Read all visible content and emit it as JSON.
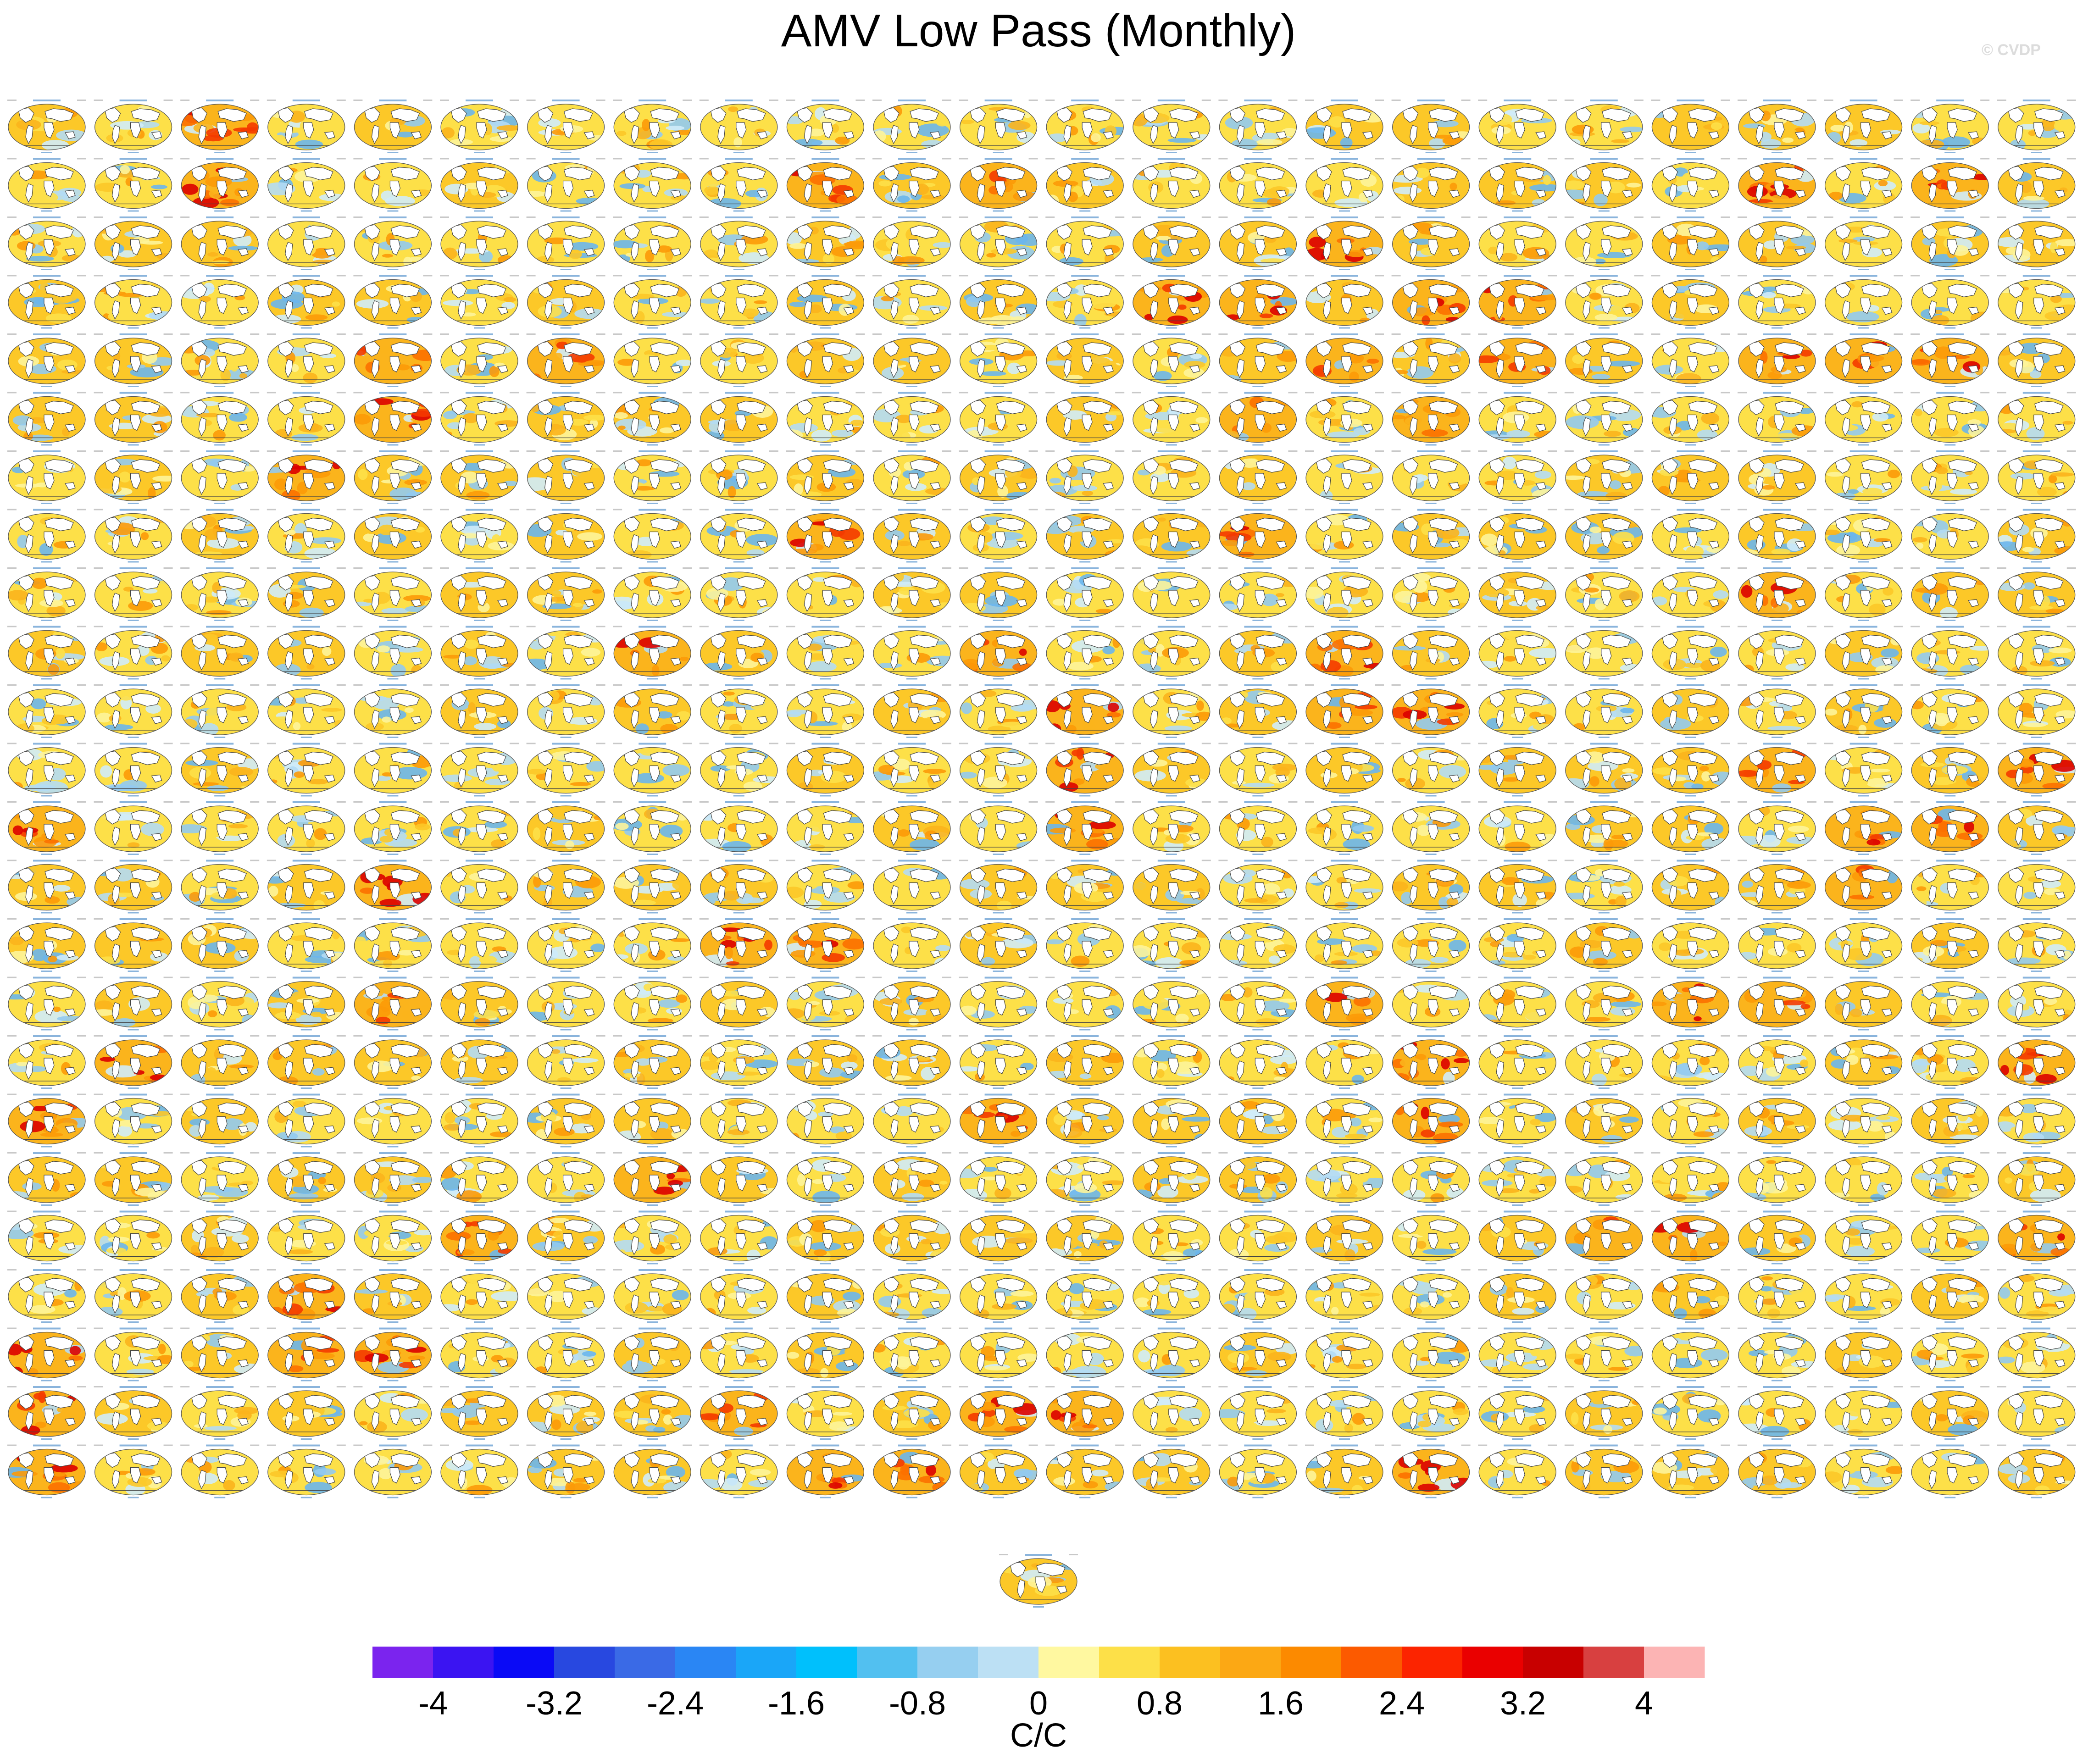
{
  "figure": {
    "title": "AMV Low Pass (Monthly)",
    "watermark": "© CVDP",
    "grid": {
      "rows": 24,
      "cols": 24,
      "extra_panels": 1
    }
  },
  "colorbar": {
    "unit": "C/C",
    "min": -4.4,
    "max": 4.4,
    "step": 0.4,
    "tick_labels": [
      "-4",
      "-3.2",
      "-2.4",
      "-1.6",
      "-0.8",
      "0",
      "0.8",
      "1.6",
      "2.4",
      "3.2",
      "4"
    ],
    "tick_values": [
      -4,
      -3.2,
      -2.4,
      -1.6,
      -0.8,
      0,
      0.8,
      1.6,
      2.4,
      3.2,
      4
    ],
    "colors": [
      "#7b24ee",
      "#3b14f2",
      "#0a0af6",
      "#2848e0",
      "#3a6ae6",
      "#2a86f4",
      "#1aa6f8",
      "#00c0fc",
      "#52c0f0",
      "#96cff0",
      "#bce0f4",
      "#fff8a0",
      "#fde048",
      "#fcc020",
      "#fca814",
      "#fc8a00",
      "#fc5a00",
      "#fc2400",
      "#ea0000",
      "#c80000",
      "#d84040",
      "#fcb4b4"
    ]
  },
  "palette": {
    "map_warm": [
      "#fdf49a",
      "#fde048",
      "#fcc828",
      "#fbb41c",
      "#fc9a08",
      "#fc7000",
      "#f43a00",
      "#dc0000"
    ],
    "map_cool": [
      "#d0ecfa",
      "#b4dcf4",
      "#92caf0",
      "#6cb6ec"
    ],
    "coast": "#444444"
  }
}
